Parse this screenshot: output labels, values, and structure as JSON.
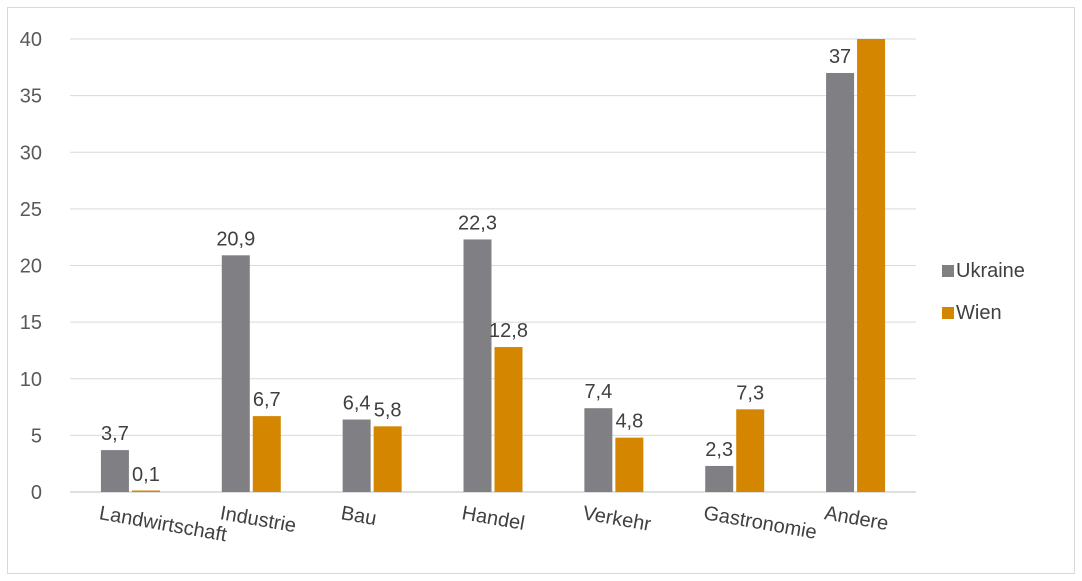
{
  "chart_data": {
    "type": "bar",
    "categories": [
      "Landwirtschaft",
      "Industrie",
      "Bau",
      "Handel",
      "Verkehr",
      "Gastronomie",
      "Andere"
    ],
    "series": [
      {
        "name": "Ukraine",
        "color": "#808084",
        "values": [
          3.7,
          20.9,
          6.4,
          22.3,
          7.4,
          2.3,
          37
        ],
        "labels": [
          "3,7",
          "20,9",
          "6,4",
          "22,3",
          "7,4",
          "2,3",
          "37"
        ]
      },
      {
        "name": "Wien",
        "color": "#d48600",
        "values": [
          0.1,
          6.7,
          5.8,
          12.8,
          4.8,
          7.3,
          40
        ],
        "labels": [
          "0,1",
          "6,7",
          "5,8",
          "12,8",
          "4,8",
          "7,3",
          ""
        ]
      }
    ],
    "yticks": [
      0,
      5,
      10,
      15,
      20,
      25,
      30,
      35,
      40
    ],
    "ylim": [
      0,
      40
    ],
    "grid": true,
    "legend_position": "right",
    "title": "",
    "xlabel": "",
    "ylabel": ""
  }
}
